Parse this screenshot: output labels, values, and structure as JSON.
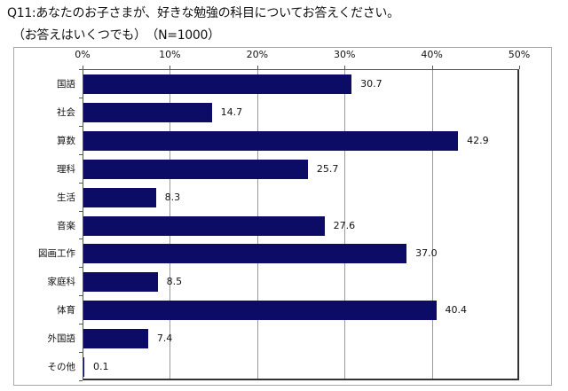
{
  "header": {
    "title": "Q11:あなたのお子さまが、好きな勉強の科目についてお答えください。",
    "subtitle": "（お答えはいくつでも）　（N=1000）"
  },
  "colors": {
    "bar": "#0c0c66",
    "grid": "#9a9a9a",
    "frame": "#a8a8a8"
  },
  "chart_data": {
    "type": "bar",
    "orientation": "horizontal",
    "title": "Q11:あなたのお子さまが、好きな勉強の科目についてお答えください。",
    "subtitle": "（お答えはいくつでも）（N=1000）",
    "xlabel": "",
    "ylabel": "",
    "xlim": [
      0,
      50
    ],
    "x_ticks": [
      "0%",
      "10%",
      "20%",
      "30%",
      "40%",
      "50%"
    ],
    "grid": true,
    "legend": null,
    "categories": [
      "国語",
      "社会",
      "算数",
      "理科",
      "生活",
      "音楽",
      "図画工作",
      "家庭科",
      "体育",
      "外国語",
      "その他"
    ],
    "values": [
      30.7,
      14.7,
      42.9,
      25.7,
      8.3,
      27.6,
      37.0,
      8.5,
      40.4,
      7.4,
      0.1
    ],
    "value_labels": [
      "30.7",
      "14.7",
      "42.9",
      "25.7",
      "8.3",
      "27.6",
      "37.0",
      "8.5",
      "40.4",
      "7.4",
      "0.1"
    ]
  }
}
